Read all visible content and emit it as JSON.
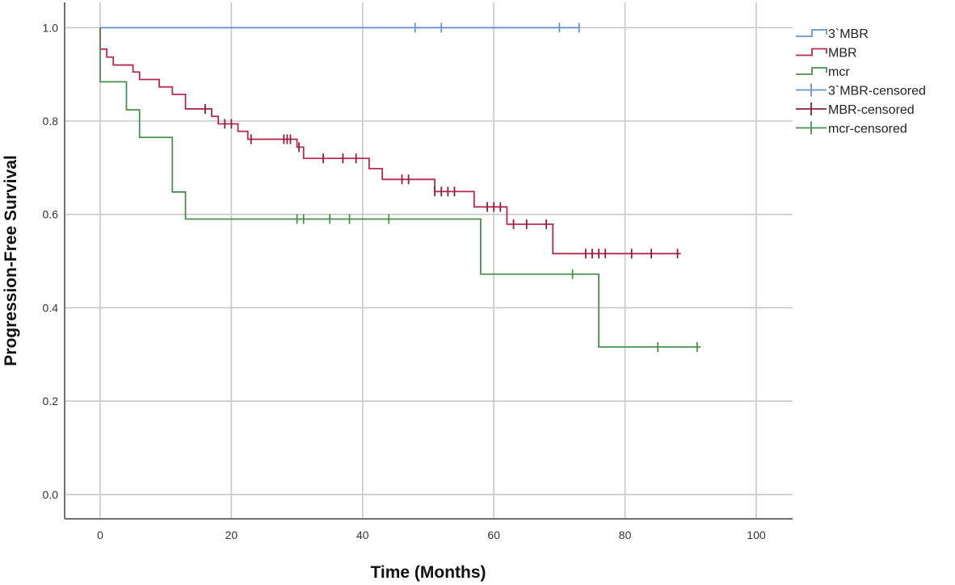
{
  "chart_data": {
    "type": "line",
    "subtype": "kaplan-meier",
    "title": "",
    "xlabel": "Time (Months)",
    "ylabel": "Progression-Free Survival",
    "xlim": [
      -5.4,
      105.5
    ],
    "ylim": [
      -0.055,
      1.06
    ],
    "x_ticks": [
      0,
      20,
      40,
      60,
      80,
      100
    ],
    "x_tick_labels": [
      "0",
      "20",
      "40",
      "60",
      "80",
      "100"
    ],
    "y_ticks": [
      0.0,
      0.2,
      0.4,
      0.6,
      0.8,
      1.0
    ],
    "y_tick_labels": [
      "0.0",
      "0.2",
      "0.4",
      "0.6",
      "0.8",
      "1.0"
    ],
    "grid": true,
    "legend_position": "right",
    "series": [
      {
        "name": "3`MBR",
        "censored_name": "3`MBR-censored",
        "color": "#6a93c9",
        "steps": [
          [
            0,
            1.0
          ]
        ],
        "end_time": 73,
        "censored": [
          [
            48,
            1.0
          ],
          [
            52,
            1.0
          ],
          [
            70,
            1.0
          ],
          [
            73,
            1.0
          ]
        ]
      },
      {
        "name": "MBR",
        "censored_name": "MBR-censored",
        "color": "#b5294f",
        "steps": [
          [
            0,
            1.0
          ],
          [
            0,
            0.954
          ],
          [
            1,
            0.937
          ],
          [
            2,
            0.92
          ],
          [
            5,
            0.905
          ],
          [
            6,
            0.889
          ],
          [
            9,
            0.873
          ],
          [
            11,
            0.857
          ],
          [
            13,
            0.826
          ],
          [
            17,
            0.81
          ],
          [
            18,
            0.794
          ],
          [
            21,
            0.778
          ],
          [
            22.5,
            0.761
          ],
          [
            30,
            0.744
          ],
          [
            31,
            0.72
          ],
          [
            41,
            0.698
          ],
          [
            43,
            0.675
          ],
          [
            51,
            0.649
          ],
          [
            57,
            0.616
          ],
          [
            62,
            0.579
          ],
          [
            69,
            0.516
          ]
        ],
        "end_time": 88.5,
        "censored": [
          [
            16,
            0.826
          ],
          [
            19,
            0.794
          ],
          [
            20,
            0.794
          ],
          [
            23,
            0.761
          ],
          [
            28,
            0.761
          ],
          [
            28.5,
            0.761
          ],
          [
            29,
            0.761
          ],
          [
            30.3,
            0.744
          ],
          [
            34,
            0.72
          ],
          [
            37,
            0.72
          ],
          [
            39,
            0.72
          ],
          [
            46,
            0.675
          ],
          [
            47,
            0.675
          ],
          [
            51,
            0.649
          ],
          [
            52,
            0.649
          ],
          [
            53,
            0.649
          ],
          [
            54,
            0.649
          ],
          [
            59,
            0.616
          ],
          [
            60,
            0.616
          ],
          [
            61,
            0.616
          ],
          [
            63,
            0.579
          ],
          [
            65,
            0.579
          ],
          [
            68,
            0.579
          ],
          [
            74,
            0.516
          ],
          [
            75,
            0.516
          ],
          [
            76,
            0.516
          ],
          [
            77,
            0.516
          ],
          [
            81,
            0.516
          ],
          [
            84,
            0.516
          ],
          [
            88,
            0.516
          ]
        ]
      },
      {
        "name": "mcr",
        "censored_name": "mcr-censored",
        "color": "#4b8f4e",
        "steps": [
          [
            0,
            1.0
          ],
          [
            0,
            0.884
          ],
          [
            4,
            0.824
          ],
          [
            6,
            0.765
          ],
          [
            11,
            0.648
          ],
          [
            13,
            0.59
          ],
          [
            58,
            0.472
          ],
          [
            76,
            0.316
          ]
        ],
        "end_time": 91.5,
        "censored": [
          [
            30,
            0.59
          ],
          [
            31,
            0.59
          ],
          [
            35,
            0.59
          ],
          [
            38,
            0.59
          ],
          [
            44,
            0.59
          ],
          [
            72,
            0.472
          ],
          [
            85,
            0.316
          ],
          [
            91,
            0.316
          ]
        ]
      }
    ]
  },
  "legend": {
    "items": [
      {
        "label": "3`MBR",
        "kind": "step",
        "color": "#6a93c9"
      },
      {
        "label": "MBR",
        "kind": "step",
        "color": "#b5294f"
      },
      {
        "label": "mcr",
        "kind": "step",
        "color": "#4b8f4e"
      },
      {
        "label": "3`MBR-censored",
        "kind": "cross",
        "color": "#6a93c9"
      },
      {
        "label": "MBR-censored",
        "kind": "cross",
        "color": "#8a1f3f"
      },
      {
        "label": "mcr-censored",
        "kind": "cross",
        "color": "#4b8f4e"
      }
    ]
  },
  "colors": {
    "grid": "#c8c8c8",
    "axis": "#707070"
  }
}
